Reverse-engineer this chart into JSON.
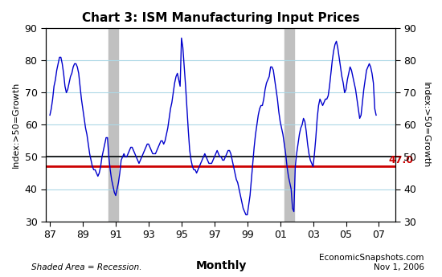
{
  "title": "Chart 3: ISM Manufacturing Input Prices",
  "ylabel_left": "Index:>50=Growth",
  "ylabel_right": "Index:>50=Growth",
  "xlabel": "Monthly",
  "ylim": [
    30,
    90
  ],
  "yticks": [
    30,
    40,
    50,
    60,
    70,
    80,
    90
  ],
  "reference_line": 47.0,
  "reference_label": "47.0",
  "recession_bands": [
    {
      "start": 1990.583,
      "end": 1991.167
    },
    {
      "start": 2001.25,
      "end": 2001.833
    }
  ],
  "line_color": "#0000CC",
  "reference_color": "#CC0000",
  "recession_color": "#C0C0C0",
  "background_color": "#FFFFFF",
  "footer_left": "Shaded Area = Recession.",
  "footer_center": "Monthly",
  "footer_right": "EconomicSnapshots.com\nNov 1, 2006",
  "xlim": [
    1986.75,
    2008.0
  ],
  "xtick_positions": [
    1987,
    1989,
    1991,
    1993,
    1995,
    1997,
    1999,
    2001,
    2003,
    2005,
    2007
  ],
  "xtick_labels": [
    "87",
    "89",
    "91",
    "93",
    "95",
    "97",
    "99",
    "01",
    "03",
    "05",
    "07"
  ],
  "data": {
    "dates": [
      1987.0,
      1987.083,
      1987.167,
      1987.25,
      1987.333,
      1987.417,
      1987.5,
      1987.583,
      1987.667,
      1987.75,
      1987.833,
      1987.917,
      1988.0,
      1988.083,
      1988.167,
      1988.25,
      1988.333,
      1988.417,
      1988.5,
      1988.583,
      1988.667,
      1988.75,
      1988.833,
      1988.917,
      1989.0,
      1989.083,
      1989.167,
      1989.25,
      1989.333,
      1989.417,
      1989.5,
      1989.583,
      1989.667,
      1989.75,
      1989.833,
      1989.917,
      1990.0,
      1990.083,
      1990.167,
      1990.25,
      1990.333,
      1990.417,
      1990.5,
      1990.583,
      1990.667,
      1990.75,
      1990.833,
      1990.917,
      1991.0,
      1991.083,
      1991.167,
      1991.25,
      1991.333,
      1991.417,
      1991.5,
      1991.583,
      1991.667,
      1991.75,
      1991.833,
      1991.917,
      1992.0,
      1992.083,
      1992.167,
      1992.25,
      1992.333,
      1992.417,
      1992.5,
      1992.583,
      1992.667,
      1992.75,
      1992.833,
      1992.917,
      1993.0,
      1993.083,
      1993.167,
      1993.25,
      1993.333,
      1993.417,
      1993.5,
      1993.583,
      1993.667,
      1993.75,
      1993.833,
      1993.917,
      1994.0,
      1994.083,
      1994.167,
      1994.25,
      1994.333,
      1994.417,
      1994.5,
      1994.583,
      1994.667,
      1994.75,
      1994.833,
      1994.917,
      1995.0,
      1995.083,
      1995.167,
      1995.25,
      1995.333,
      1995.417,
      1995.5,
      1995.583,
      1995.667,
      1995.75,
      1995.833,
      1995.917,
      1996.0,
      1996.083,
      1996.167,
      1996.25,
      1996.333,
      1996.417,
      1996.5,
      1996.583,
      1996.667,
      1996.75,
      1996.833,
      1996.917,
      1997.0,
      1997.083,
      1997.167,
      1997.25,
      1997.333,
      1997.417,
      1997.5,
      1997.583,
      1997.667,
      1997.75,
      1997.833,
      1997.917,
      1998.0,
      1998.083,
      1998.167,
      1998.25,
      1998.333,
      1998.417,
      1998.5,
      1998.583,
      1998.667,
      1998.75,
      1998.833,
      1998.917,
      1999.0,
      1999.083,
      1999.167,
      1999.25,
      1999.333,
      1999.417,
      1999.5,
      1999.583,
      1999.667,
      1999.75,
      1999.833,
      1999.917,
      2000.0,
      2000.083,
      2000.167,
      2000.25,
      2000.333,
      2000.417,
      2000.5,
      2000.583,
      2000.667,
      2000.75,
      2000.833,
      2000.917,
      2001.0,
      2001.083,
      2001.167,
      2001.25,
      2001.333,
      2001.417,
      2001.5,
      2001.583,
      2001.667,
      2001.75,
      2001.833,
      2001.917,
      2002.0,
      2002.083,
      2002.167,
      2002.25,
      2002.333,
      2002.417,
      2002.5,
      2002.583,
      2002.667,
      2002.75,
      2002.833,
      2002.917,
      2003.0,
      2003.083,
      2003.167,
      2003.25,
      2003.333,
      2003.417,
      2003.5,
      2003.583,
      2003.667,
      2003.75,
      2003.833,
      2003.917,
      2004.0,
      2004.083,
      2004.167,
      2004.25,
      2004.333,
      2004.417,
      2004.5,
      2004.583,
      2004.667,
      2004.75,
      2004.833,
      2004.917,
      2005.0,
      2005.083,
      2005.167,
      2005.25,
      2005.333,
      2005.417,
      2005.5,
      2005.583,
      2005.667,
      2005.75,
      2005.833,
      2005.917,
      2006.0,
      2006.083,
      2006.167,
      2006.25,
      2006.333,
      2006.417,
      2006.5,
      2006.583,
      2006.667,
      2006.75,
      2006.833
    ],
    "values": [
      63,
      65,
      68,
      72,
      74,
      77,
      79,
      81,
      81,
      79,
      76,
      72,
      70,
      71,
      73,
      75,
      76,
      78,
      79,
      79,
      78,
      76,
      72,
      68,
      65,
      62,
      59,
      57,
      54,
      51,
      49,
      47,
      46,
      46,
      45,
      44,
      45,
      47,
      50,
      52,
      54,
      56,
      56,
      50,
      46,
      43,
      41,
      39,
      38,
      40,
      42,
      45,
      49,
      50,
      51,
      50,
      50,
      51,
      52,
      53,
      53,
      52,
      51,
      50,
      49,
      48,
      49,
      50,
      51,
      52,
      53,
      54,
      54,
      53,
      52,
      51,
      51,
      51,
      52,
      53,
      54,
      55,
      55,
      54,
      55,
      57,
      59,
      62,
      65,
      67,
      70,
      73,
      75,
      76,
      74,
      72,
      87,
      84,
      78,
      72,
      65,
      58,
      52,
      49,
      47,
      46,
      46,
      45,
      46,
      47,
      48,
      49,
      50,
      51,
      50,
      49,
      48,
      48,
      48,
      49,
      50,
      51,
      52,
      51,
      50,
      50,
      49,
      49,
      50,
      51,
      52,
      52,
      51,
      49,
      47,
      45,
      43,
      42,
      40,
      38,
      36,
      34,
      33,
      32,
      32,
      35,
      38,
      43,
      48,
      53,
      57,
      60,
      63,
      65,
      66,
      66,
      68,
      71,
      73,
      74,
      75,
      78,
      78,
      77,
      74,
      71,
      68,
      64,
      61,
      59,
      57,
      54,
      51,
      47,
      44,
      42,
      40,
      34,
      33,
      47,
      51,
      54,
      57,
      59,
      60,
      62,
      61,
      58,
      54,
      51,
      49,
      48,
      47,
      51,
      56,
      62,
      66,
      68,
      67,
      66,
      67,
      68,
      68,
      69,
      72,
      76,
      80,
      83,
      85,
      86,
      84,
      81,
      78,
      75,
      73,
      70,
      71,
      74,
      76,
      78,
      77,
      75,
      73,
      71,
      68,
      65,
      62,
      63,
      67,
      71,
      74,
      77,
      78,
      79,
      78,
      76,
      73,
      65,
      63
    ]
  }
}
